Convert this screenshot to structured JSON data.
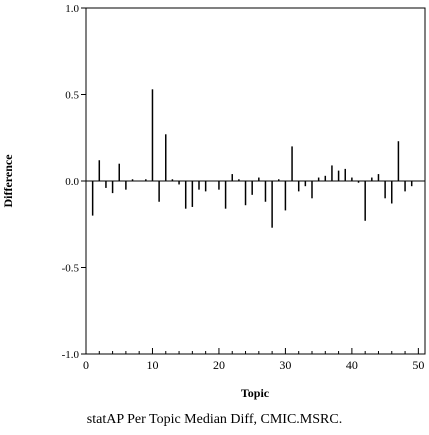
{
  "chart_data": {
    "type": "bar",
    "xlabel": "Topic",
    "ylabel": "Difference",
    "xlim": [
      0,
      51
    ],
    "ylim": [
      -1.0,
      1.0
    ],
    "x_ticks": [
      0,
      10,
      20,
      30,
      40,
      50
    ],
    "y_ticks": [
      1.0,
      0.5,
      0.0,
      -0.5,
      -1.0
    ],
    "y_tick_labels": [
      "1.0",
      "0.5",
      "0.0",
      "-0.5",
      "-1.0"
    ],
    "grid": false,
    "color": "#000000",
    "x": [
      1,
      2,
      3,
      4,
      5,
      6,
      7,
      8,
      9,
      10,
      11,
      12,
      13,
      14,
      15,
      16,
      17,
      18,
      19,
      20,
      21,
      22,
      23,
      24,
      25,
      26,
      27,
      28,
      29,
      30,
      31,
      32,
      33,
      34,
      35,
      36,
      37,
      38,
      39,
      40,
      41,
      42,
      43,
      44,
      45,
      46,
      47,
      48,
      49,
      50
    ],
    "values": [
      -0.2,
      0.12,
      -0.04,
      -0.07,
      0.1,
      -0.05,
      0.01,
      0.0,
      0.01,
      0.53,
      -0.12,
      0.27,
      0.01,
      -0.02,
      -0.16,
      -0.15,
      -0.05,
      -0.06,
      0.0,
      -0.05,
      -0.16,
      0.04,
      0.01,
      -0.14,
      -0.08,
      0.02,
      -0.12,
      -0.27,
      0.01,
      -0.17,
      0.2,
      -0.06,
      -0.03,
      -0.1,
      0.02,
      0.03,
      0.09,
      0.06,
      0.07,
      0.02,
      -0.01,
      -0.23,
      0.02,
      0.04,
      -0.1,
      -0.13,
      0.23,
      -0.06,
      -0.03,
      0.0
    ]
  },
  "caption": "statAP Per Topic Median Diff, CMIC.MSRC."
}
